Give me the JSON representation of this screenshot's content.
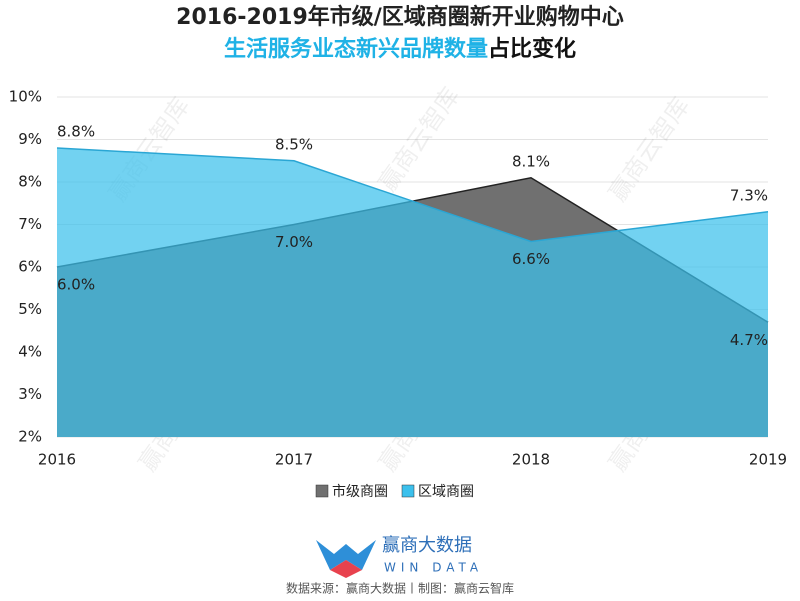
{
  "chart_data": {
    "type": "area",
    "title": "2016-2019年市级/区域商圈新开业购物中心",
    "subtitle_highlight": "生活服务业态新兴品牌数量",
    "subtitle_rest": "占比变化",
    "categories": [
      "2016",
      "2017",
      "2018",
      "2019"
    ],
    "series": [
      {
        "name": "市级商圈",
        "color": "#707070",
        "line_color": "#222222",
        "values": [
          6.0,
          7.0,
          8.1,
          4.7
        ],
        "value_labels": [
          "6.0%",
          "7.0%",
          "8.1%",
          "4.7%"
        ]
      },
      {
        "name": "区域商圈",
        "color": "#3cc0ec",
        "line_color": "#2aa6d4",
        "values": [
          8.8,
          8.5,
          6.6,
          7.3
        ],
        "value_labels": [
          "8.8%",
          "8.5%",
          "6.6%",
          "7.3%"
        ]
      }
    ],
    "ylim": [
      2,
      10
    ],
    "yticks": [
      {
        "value": 2,
        "label": "2%"
      },
      {
        "value": 3,
        "label": "3%"
      },
      {
        "value": 4,
        "label": "4%"
      },
      {
        "value": 5,
        "label": "5%"
      },
      {
        "value": 6,
        "label": "6%"
      },
      {
        "value": 7,
        "label": "7%"
      },
      {
        "value": 8,
        "label": "8%"
      },
      {
        "value": 9,
        "label": "9%"
      },
      {
        "value": 10,
        "label": "10%"
      }
    ],
    "grid": true,
    "legend": "bottom",
    "watermark": "赢商云智库",
    "logo_name": "赢商大数据",
    "logo_sub": "WIN DATA",
    "source": "数据来源：赢商大数据丨制图：赢商云智库"
  }
}
